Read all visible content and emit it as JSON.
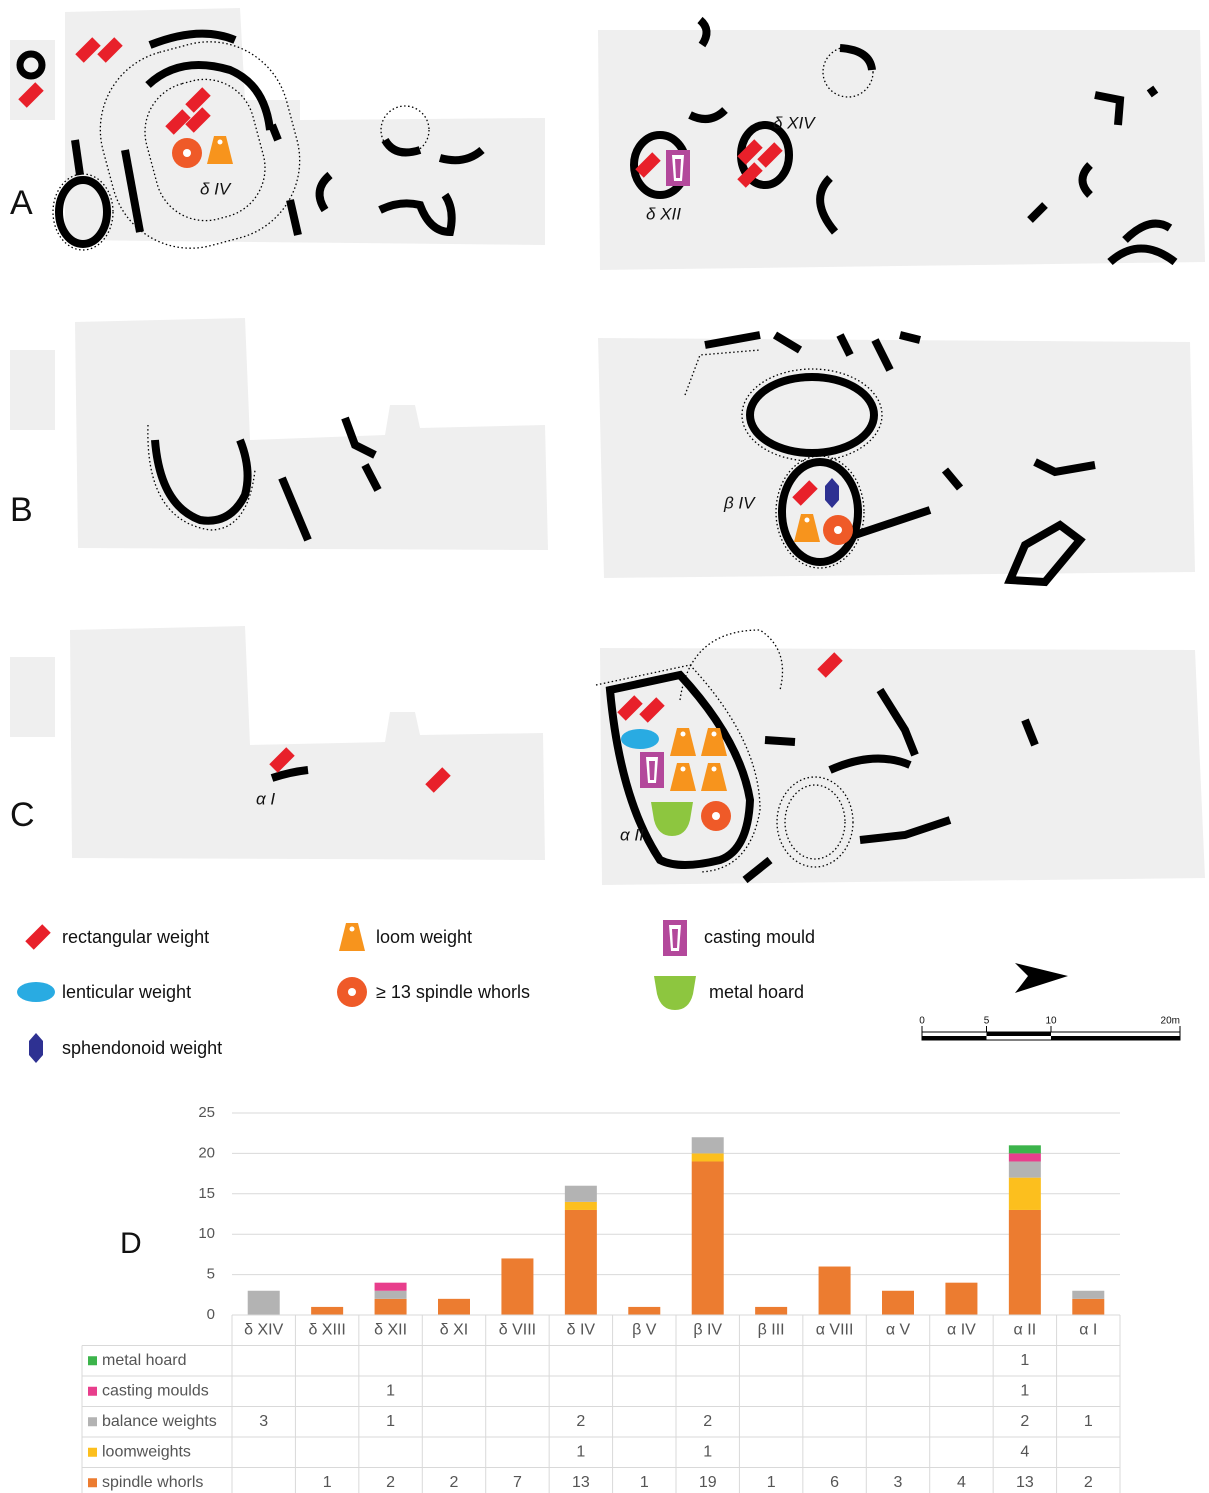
{
  "panel_labels": [
    "A",
    "B",
    "C",
    "D"
  ],
  "plan_labels": [
    "δ IV",
    "δ XII",
    "δ XIV",
    "β IV",
    "α I",
    "α II"
  ],
  "legend": [
    "rectangular weight",
    "loom weight",
    "casting mould",
    "lenticular weight",
    "≥ 13 spindle whorls",
    "metal hoard",
    "sphendonoid weight"
  ],
  "scale_bar": {
    "ticks": [
      0,
      5,
      10,
      {
        "value": 20,
        "label": "20m"
      }
    ]
  },
  "chart_data": {
    "type": "bar",
    "stacked": true,
    "categories": [
      "δ XIV",
      "δ XIII",
      "δ XII",
      "δ XI",
      "δ VIII",
      "δ IV",
      "β V",
      "β IV",
      "β III",
      "α VIII",
      "α V",
      "α IV",
      "α II",
      "α I"
    ],
    "series": [
      {
        "name": "metal hoard",
        "color": "#3cb44b",
        "values": [
          null,
          null,
          null,
          null,
          null,
          null,
          null,
          null,
          null,
          null,
          null,
          null,
          1,
          null
        ]
      },
      {
        "name": "casting moulds",
        "color": "#e83e8c",
        "values": [
          null,
          null,
          1,
          null,
          null,
          null,
          null,
          null,
          null,
          null,
          null,
          null,
          1,
          null
        ]
      },
      {
        "name": "balance weights",
        "color": "#b3b3b3",
        "values": [
          3,
          null,
          1,
          null,
          null,
          2,
          null,
          2,
          null,
          null,
          null,
          null,
          2,
          1
        ]
      },
      {
        "name": "loomweights",
        "color": "#fcbf1e",
        "values": [
          null,
          null,
          null,
          null,
          null,
          1,
          null,
          1,
          null,
          null,
          null,
          null,
          4,
          null
        ]
      },
      {
        "name": "spindle whorls",
        "color": "#ec7c30",
        "values": [
          null,
          1,
          2,
          2,
          7,
          13,
          1,
          19,
          1,
          6,
          3,
          4,
          13,
          2
        ]
      }
    ],
    "ylim": [
      0,
      25
    ],
    "yticks": [
      0,
      5,
      10,
      15,
      20,
      25
    ],
    "grid": true
  }
}
